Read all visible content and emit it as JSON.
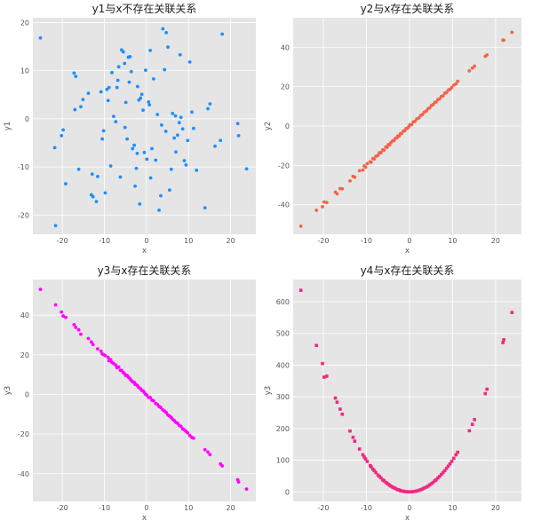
{
  "chart_data": [
    {
      "type": "scatter",
      "title": "y1与x不存在关联关系",
      "xlabel": "x",
      "ylabel": "y1",
      "xlim": [
        -27,
        26
      ],
      "ylim": [
        -24,
        21
      ],
      "xticks": [
        -20,
        -10,
        0,
        10,
        20
      ],
      "yticks": [
        -20,
        -10,
        0,
        10,
        20
      ],
      "grid": true,
      "color": "#1e8fff",
      "marker": "circle",
      "x": [
        -25.2,
        -21.6,
        -20.2,
        -19.8,
        -19.2,
        -17.2,
        -16.8,
        -16.1,
        -15.6,
        -13.8,
        -13.1,
        -12.7,
        -11.6,
        -10.8,
        -10.5,
        -10.2,
        -9.8,
        -9.1,
        -8.9,
        -8.5,
        -8.2,
        -7.8,
        -7.3,
        -7.0,
        -6.6,
        -6.2,
        -5.9,
        -5.5,
        -5.2,
        -4.9,
        -4.6,
        -4.3,
        -3.9,
        -3.6,
        -3.3,
        -2.9,
        -2.7,
        -2.4,
        -2.1,
        -1.8,
        -1.4,
        -1.1,
        -0.8,
        -0.5,
        -0.2,
        0.1,
        0.5,
        0.9,
        1.3,
        1.7,
        2.2,
        2.6,
        3.0,
        3.4,
        3.9,
        4.3,
        4.7,
        5.1,
        5.5,
        5.9,
        6.2,
        6.6,
        7.0,
        7.4,
        7.8,
        8.2,
        8.6,
        9.0,
        9.4,
        9.8,
        10.3,
        10.8,
        11.2,
        13.9,
        14.6,
        15.1,
        17.6,
        18.0,
        21.7,
        21.9,
        23.8,
        -21.8,
        -17.0,
        -15.1,
        -12.9,
        -9.4,
        -6.8,
        -4.1,
        -1.6,
        1.0,
        4.6,
        8.0,
        11.9,
        16.3,
        -2.2,
        3.6,
        6.9,
        -11.9,
        -5.1,
        0.7
      ],
      "y": [
        16.8,
        -22.2,
        -3.5,
        -2.3,
        -13.5,
        9.5,
        8.8,
        -10.5,
        2.5,
        5.3,
        -15.8,
        -16.2,
        -12.0,
        5.6,
        -4.2,
        -2.5,
        -15.4,
        3.8,
        6.5,
        -9.8,
        9.6,
        0.5,
        -0.6,
        6.5,
        10.8,
        -12.1,
        14.3,
        13.9,
        11.5,
        3.4,
        -4.2,
        12.8,
        12.9,
        9.8,
        -6.2,
        -5.5,
        -14.0,
        -10.3,
        6.7,
        3.9,
        4.3,
        5.1,
        1.8,
        -7.0,
        10.1,
        -8.4,
        3.5,
        14.2,
        -6.2,
        8.3,
        -8.6,
        0.9,
        -19.0,
        -16.0,
        18.7,
        10.2,
        17.9,
        14.9,
        -14.8,
        -10.5,
        1.1,
        -4.0,
        -6.9,
        -3.4,
        -0.8,
        0.3,
        -2.1,
        -8.7,
        -9.6,
        -4.5,
        11.8,
        1.4,
        -2.0,
        -18.5,
        2.1,
        3.1,
        -4.5,
        17.6,
        -1.0,
        -3.5,
        -10.4,
        -6.0,
        1.9,
        4.0,
        -11.5,
        6.1,
        8.0,
        7.6,
        -17.7,
        -12.3,
        -2.6,
        13.3,
        -10.7,
        -5.7,
        -7.2,
        -1.3,
        0.6,
        -17.2,
        -1.8,
        2.9
      ]
    },
    {
      "type": "scatter",
      "title": "y2与x存在关联关系",
      "xlabel": "x",
      "ylabel": "y2",
      "xlim": [
        -27,
        26
      ],
      "ylim": [
        -55,
        55
      ],
      "xticks": [
        -20,
        -10,
        0,
        10,
        20
      ],
      "yticks": [
        -40,
        -20,
        0,
        20,
        40
      ],
      "grid": true,
      "color": "#f4624a",
      "marker": "circle",
      "x": [
        -25.2,
        -21.6,
        -20.2,
        -19.8,
        -19.2,
        -17.2,
        -16.8,
        -16.1,
        -15.6,
        -13.8,
        -13.1,
        -12.7,
        -11.6,
        -10.8,
        -10.5,
        -10.2,
        -9.8,
        -9.1,
        -8.9,
        -8.5,
        -8.2,
        -7.8,
        -7.3,
        -7.0,
        -6.6,
        -6.2,
        -5.9,
        -5.5,
        -5.2,
        -4.9,
        -4.6,
        -4.3,
        -3.9,
        -3.6,
        -3.3,
        -2.9,
        -2.7,
        -2.4,
        -2.1,
        -1.8,
        -1.4,
        -1.1,
        -0.8,
        -0.5,
        -0.2,
        0.1,
        0.5,
        0.9,
        1.3,
        1.7,
        2.2,
        2.6,
        3.0,
        3.4,
        3.9,
        4.3,
        4.7,
        5.1,
        5.5,
        5.9,
        6.2,
        6.6,
        7.0,
        7.4,
        7.8,
        8.2,
        8.6,
        9.0,
        9.4,
        9.8,
        10.3,
        10.8,
        11.2,
        13.9,
        14.6,
        15.1,
        17.6,
        18.0,
        21.7,
        21.9,
        23.8
      ],
      "y": [
        -50.9,
        -42.8,
        -41.0,
        -38.6,
        -38.9,
        -33.6,
        -34.5,
        -31.8,
        -31.9,
        -27.9,
        -25.6,
        -26.0,
        -22.7,
        -22.4,
        -20.3,
        -20.9,
        -19.1,
        -18.2,
        -18.4,
        -16.5,
        -16.8,
        -15.4,
        -14.9,
        -13.6,
        -13.5,
        -12.1,
        -12.3,
        -10.7,
        -10.8,
        -9.5,
        -9.6,
        -8.4,
        -7.5,
        -7.5,
        -6.3,
        -6.0,
        -5.1,
        -5.2,
        -3.9,
        -3.8,
        -2.6,
        -2.4,
        -1.3,
        -1.2,
        -0.5,
        0.6,
        0.7,
        2.1,
        2.4,
        3.6,
        4.1,
        5.4,
        5.8,
        7.0,
        7.6,
        8.8,
        9.2,
        10.4,
        10.9,
        12.0,
        12.2,
        13.4,
        13.8,
        15.0,
        15.3,
        16.7,
        17.0,
        18.2,
        18.6,
        19.5,
        20.8,
        21.4,
        22.7,
        28.0,
        29.4,
        30.4,
        35.4,
        36.1,
        43.6,
        43.6,
        47.6
      ]
    },
    {
      "type": "scatter",
      "title": "y3与x存在关联关系",
      "xlabel": "x",
      "ylabel": "y3",
      "xlim": [
        -27,
        26
      ],
      "ylim": [
        -54,
        58
      ],
      "xticks": [
        -20,
        -10,
        0,
        10,
        20
      ],
      "yticks": [
        -40,
        -20,
        0,
        20,
        40
      ],
      "grid": true,
      "color": "#ff00ff",
      "marker": "circle",
      "x": [
        -25.2,
        -21.6,
        -20.2,
        -19.8,
        -19.2,
        -17.2,
        -16.8,
        -16.1,
        -15.6,
        -13.8,
        -13.1,
        -12.7,
        -11.6,
        -10.8,
        -10.5,
        -10.2,
        -9.8,
        -9.1,
        -8.9,
        -8.5,
        -8.2,
        -7.8,
        -7.3,
        -7.0,
        -6.6,
        -6.2,
        -5.9,
        -5.5,
        -5.2,
        -4.9,
        -4.6,
        -4.3,
        -3.9,
        -3.6,
        -3.3,
        -2.9,
        -2.7,
        -2.4,
        -2.1,
        -1.8,
        -1.4,
        -1.1,
        -0.8,
        -0.5,
        -0.2,
        0.1,
        0.5,
        0.9,
        1.3,
        1.7,
        2.2,
        2.6,
        3.0,
        3.4,
        3.9,
        4.3,
        4.7,
        5.1,
        5.5,
        5.9,
        6.2,
        6.6,
        7.0,
        7.4,
        7.8,
        8.2,
        8.6,
        9.0,
        9.4,
        9.8,
        10.3,
        10.8,
        11.2,
        13.9,
        14.6,
        15.1,
        17.6,
        18.0,
        21.7,
        21.9,
        23.8
      ],
      "y": [
        53.0,
        45.2,
        41.6,
        39.6,
        38.9,
        35.2,
        33.8,
        32.6,
        30.4,
        28.2,
        26.5,
        25.2,
        23.0,
        21.8,
        20.4,
        20.1,
        19.6,
        18.7,
        17.0,
        17.5,
        16.2,
        15.6,
        14.8,
        13.5,
        13.8,
        12.2,
        12.1,
        11.0,
        10.4,
        9.5,
        9.6,
        8.7,
        7.9,
        7.0,
        6.4,
        6.0,
        5.1,
        4.9,
        4.3,
        3.4,
        2.9,
        2.0,
        1.8,
        0.9,
        0.1,
        -0.4,
        -1.5,
        -1.6,
        -2.9,
        -3.2,
        -4.6,
        -5.0,
        -6.1,
        -6.6,
        -7.8,
        -8.4,
        -9.2,
        -10.4,
        -10.9,
        -11.6,
        -12.5,
        -13.2,
        -14.1,
        -14.6,
        -15.7,
        -16.1,
        -17.4,
        -17.9,
        -18.6,
        -19.4,
        -20.8,
        -21.7,
        -22.1,
        -27.9,
        -29.1,
        -30.4,
        -35.1,
        -36.1,
        -43.1,
        -44.2,
        -47.8
      ]
    },
    {
      "type": "scatter",
      "title": "y4与x存在关联关系",
      "xlabel": "x",
      "ylabel": "y3",
      "xlim": [
        -27,
        26
      ],
      "ylim": [
        -30,
        670
      ],
      "xticks": [
        -20,
        -10,
        0,
        10,
        20
      ],
      "yticks": [
        0,
        100,
        200,
        300,
        400,
        500,
        600
      ],
      "grid": true,
      "color": "#f0287e",
      "marker": "square",
      "x": [
        -25.2,
        -21.6,
        -20.2,
        -19.8,
        -19.2,
        -17.2,
        -16.8,
        -16.1,
        -15.6,
        -13.8,
        -13.1,
        -12.7,
        -11.6,
        -10.8,
        -10.5,
        -10.2,
        -9.8,
        -9.1,
        -8.9,
        -8.5,
        -8.2,
        -7.8,
        -7.3,
        -7.0,
        -6.6,
        -6.2,
        -5.9,
        -5.5,
        -5.2,
        -4.9,
        -4.6,
        -4.3,
        -3.9,
        -3.6,
        -3.3,
        -2.9,
        -2.7,
        -2.4,
        -2.1,
        -1.8,
        -1.4,
        -1.1,
        -0.8,
        -0.5,
        -0.2,
        0.1,
        0.5,
        0.9,
        1.3,
        1.7,
        2.2,
        2.6,
        3.0,
        3.4,
        3.9,
        4.3,
        4.7,
        5.1,
        5.5,
        5.9,
        6.2,
        6.6,
        7.0,
        7.4,
        7.8,
        8.2,
        8.6,
        9.0,
        9.4,
        9.8,
        10.3,
        10.8,
        11.2,
        13.9,
        14.6,
        15.1,
        17.6,
        18.0,
        21.7,
        21.9,
        23.8
      ],
      "y": [
        636,
        462,
        405,
        362,
        365,
        296,
        283,
        261,
        245,
        192,
        172,
        160,
        135,
        117,
        110,
        104,
        96,
        83,
        79,
        72,
        67,
        61,
        53,
        49,
        44,
        38,
        35,
        30,
        27,
        24,
        21,
        18,
        15,
        13,
        11,
        8,
        7,
        6,
        4,
        3,
        2,
        1,
        0.6,
        0.3,
        0.1,
        0.1,
        0.3,
        0.8,
        1.7,
        2.9,
        4.8,
        6.8,
        9,
        12,
        15,
        18,
        22,
        26,
        30,
        35,
        38,
        44,
        49,
        55,
        61,
        67,
        74,
        81,
        88,
        96,
        106,
        117,
        125,
        193,
        213,
        228,
        310,
        324,
        471,
        480,
        566
      ]
    }
  ]
}
